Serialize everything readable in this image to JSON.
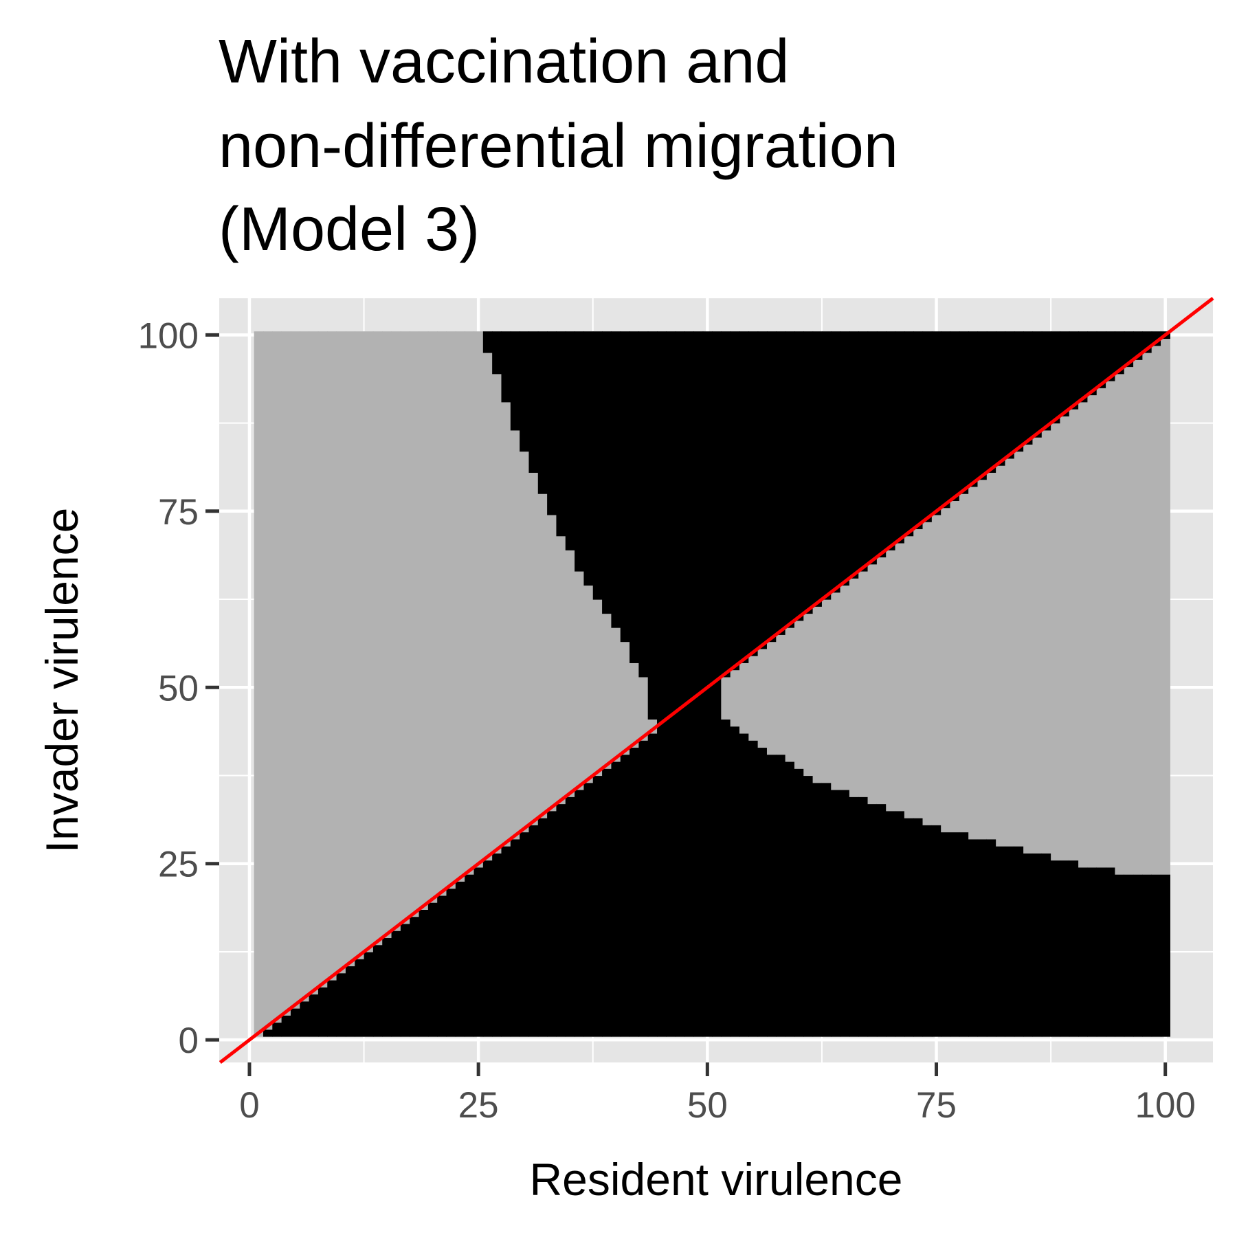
{
  "chart_data": {
    "type": "heatmap",
    "title_lines": [
      "With vaccination and",
      "non-differential migration",
      "(Model 3)"
    ],
    "xlabel": "Resident virulence",
    "ylabel": "Invader virulence",
    "xlim": [
      -3.3,
      105.2
    ],
    "ylim": [
      -3.2,
      105.2
    ],
    "x_ticks": [
      0,
      25,
      50,
      75,
      100
    ],
    "y_ticks": [
      0,
      25,
      50,
      75,
      100
    ],
    "grid": true,
    "cell_range": [
      1,
      100
    ],
    "fill_colors": {
      "invasion_possible": "#000000",
      "invasion_not_possible": "#b2b2b2"
    },
    "panel_color": "#e5e5e5",
    "reference_line": {
      "intercept": 0,
      "slope": 1,
      "color": "#ff0000"
    },
    "boundaries": {
      "upper": [
        {
          "x": 25,
          "y": 100
        },
        {
          "x": 26,
          "y": 97
        },
        {
          "x": 27,
          "y": 94
        },
        {
          "x": 28,
          "y": 90
        },
        {
          "x": 29,
          "y": 86
        },
        {
          "x": 30,
          "y": 83
        },
        {
          "x": 31,
          "y": 80
        },
        {
          "x": 32,
          "y": 77
        },
        {
          "x": 33,
          "y": 74
        },
        {
          "x": 34,
          "y": 71
        },
        {
          "x": 35,
          "y": 69
        },
        {
          "x": 36,
          "y": 66
        },
        {
          "x": 37,
          "y": 64
        },
        {
          "x": 38,
          "y": 62
        },
        {
          "x": 39,
          "y": 60
        },
        {
          "x": 40,
          "y": 58
        },
        {
          "x": 41,
          "y": 56
        },
        {
          "x": 42,
          "y": 53
        },
        {
          "x": 43,
          "y": 51
        },
        {
          "x": 44,
          "y": 45
        }
      ],
      "lower": [
        {
          "x": 52,
          "y": 45
        },
        {
          "x": 53,
          "y": 44
        },
        {
          "x": 54,
          "y": 43
        },
        {
          "x": 55,
          "y": 42
        },
        {
          "x": 56,
          "y": 41
        },
        {
          "x": 57,
          "y": 40
        },
        {
          "x": 58,
          "y": 40
        },
        {
          "x": 59,
          "y": 39
        },
        {
          "x": 60,
          "y": 38
        },
        {
          "x": 61,
          "y": 37
        },
        {
          "x": 62,
          "y": 36
        },
        {
          "x": 63,
          "y": 36
        },
        {
          "x": 64,
          "y": 35
        },
        {
          "x": 65,
          "y": 35
        },
        {
          "x": 66,
          "y": 34
        },
        {
          "x": 67,
          "y": 34
        },
        {
          "x": 68,
          "y": 33
        },
        {
          "x": 69,
          "y": 33
        },
        {
          "x": 70,
          "y": 32
        },
        {
          "x": 71,
          "y": 32
        },
        {
          "x": 72,
          "y": 31
        },
        {
          "x": 73,
          "y": 31
        },
        {
          "x": 74,
          "y": 30
        },
        {
          "x": 75,
          "y": 30
        },
        {
          "x": 76,
          "y": 29
        },
        {
          "x": 77,
          "y": 29
        },
        {
          "x": 78,
          "y": 29
        },
        {
          "x": 79,
          "y": 28
        },
        {
          "x": 80,
          "y": 28
        },
        {
          "x": 81,
          "y": 28
        },
        {
          "x": 82,
          "y": 27
        },
        {
          "x": 83,
          "y": 27
        },
        {
          "x": 84,
          "y": 27
        },
        {
          "x": 85,
          "y": 26
        },
        {
          "x": 86,
          "y": 26
        },
        {
          "x": 87,
          "y": 26
        },
        {
          "x": 88,
          "y": 25
        },
        {
          "x": 89,
          "y": 25
        },
        {
          "x": 90,
          "y": 25
        },
        {
          "x": 91,
          "y": 24
        },
        {
          "x": 92,
          "y": 24
        },
        {
          "x": 93,
          "y": 24
        },
        {
          "x": 94,
          "y": 24
        },
        {
          "x": 95,
          "y": 23
        },
        {
          "x": 96,
          "y": 23
        },
        {
          "x": 97,
          "y": 23
        },
        {
          "x": 98,
          "y": 23
        },
        {
          "x": 99,
          "y": 23
        },
        {
          "x": 100,
          "y": 23
        }
      ]
    }
  }
}
